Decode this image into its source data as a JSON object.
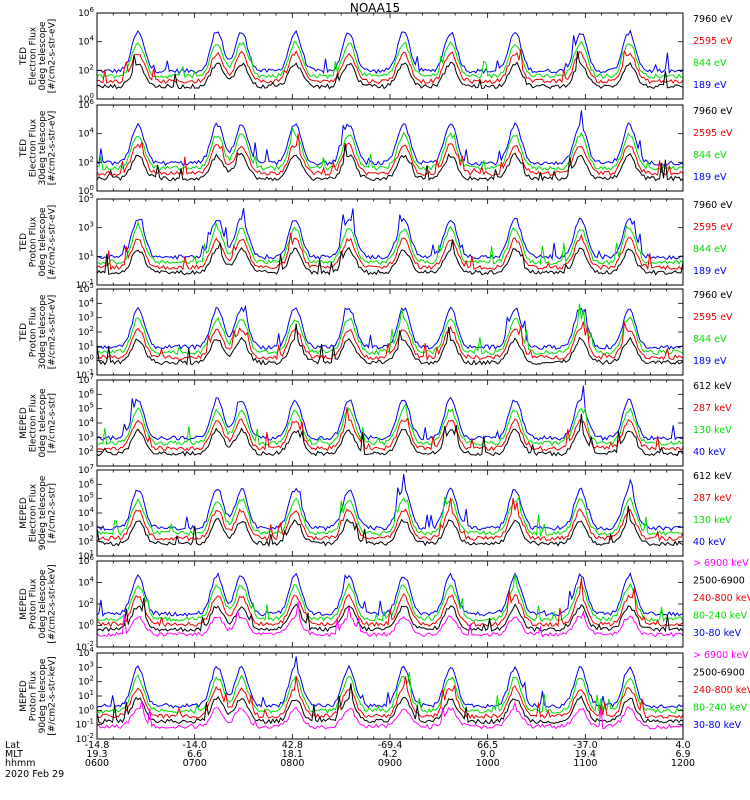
{
  "title": "NOAA15",
  "colors": {
    "black": "#000000",
    "red": "#ee0000",
    "green": "#00dd00",
    "blue": "#0000ee",
    "magenta": "#ff00ff"
  },
  "chart_data": {
    "type": "line",
    "x_label_rows": [
      {
        "name": "Lat",
        "values": [
          "-14.8",
          "-14.0",
          "42.8",
          "-69.4",
          "66.5",
          "-37.0",
          "4.0"
        ]
      },
      {
        "name": "MLT",
        "values": [
          "19.3",
          "6.6",
          "18.1",
          "4.2",
          "9.0",
          "19.4",
          "6.9"
        ]
      },
      {
        "name": "hhmm",
        "values": [
          "0600",
          "0700",
          "0800",
          "0900",
          "1000",
          "1100",
          "1200"
        ]
      }
    ],
    "date": "2020 Feb 29",
    "x_range_hours": [
      6,
      12
    ],
    "panels": [
      {
        "ylabel": [
          "TED",
          "Electron Flux",
          "0deg telescope",
          "[#/cm2-s-str-eV]"
        ],
        "ylim_exp": [
          0,
          6
        ],
        "tick_exps": [
          0,
          2,
          4,
          6
        ],
        "legend": [
          {
            "label": "7960 eV",
            "color": "#000000"
          },
          {
            "label": "2595 eV",
            "color": "#ee0000"
          },
          {
            "label": "844 eV",
            "color": "#00dd00"
          },
          {
            "label": "189 eV",
            "color": "#0000ee"
          }
        ]
      },
      {
        "ylabel": [
          "TED",
          "Electron Flux",
          "30deg telescope",
          "[#/cm2-s-str-eV]"
        ],
        "ylim_exp": [
          0,
          6
        ],
        "tick_exps": [
          0,
          2,
          4,
          6
        ],
        "legend": [
          {
            "label": "7960 eV",
            "color": "#000000"
          },
          {
            "label": "2595 eV",
            "color": "#ee0000"
          },
          {
            "label": "844 eV",
            "color": "#00dd00"
          },
          {
            "label": "189 eV",
            "color": "#0000ee"
          }
        ]
      },
      {
        "ylabel": [
          "TED",
          "Proton Flux",
          "0deg telescope",
          "[#/cm2-s-str-eV]"
        ],
        "ylim_exp": [
          -1,
          5
        ],
        "tick_exps": [
          -1,
          1,
          3,
          5
        ],
        "legend": [
          {
            "label": "7960 eV",
            "color": "#000000"
          },
          {
            "label": "2595 eV",
            "color": "#ee0000"
          },
          {
            "label": "844 eV",
            "color": "#00dd00"
          },
          {
            "label": "189 eV",
            "color": "#0000ee"
          }
        ]
      },
      {
        "ylabel": [
          "TED",
          "Proton Flux",
          "30deg telescope",
          "[#/cm2-s-str-eV]"
        ],
        "ylim_exp": [
          -1,
          5
        ],
        "tick_exps": [
          -1,
          0,
          1,
          2,
          3,
          4,
          5
        ],
        "legend": [
          {
            "label": "7960 eV",
            "color": "#000000"
          },
          {
            "label": "2595 eV",
            "color": "#ee0000"
          },
          {
            "label": "844 eV",
            "color": "#00dd00"
          },
          {
            "label": "189 eV",
            "color": "#0000ee"
          }
        ]
      },
      {
        "ylabel": [
          "MEPED",
          "Electron Flux",
          "0deg telescope",
          "[#/cm2-s-str]"
        ],
        "ylim_exp": [
          1,
          7
        ],
        "tick_exps": [
          2,
          3,
          4,
          5,
          6,
          7
        ],
        "legend": [
          {
            "label": "612 keV",
            "color": "#000000"
          },
          {
            "label": "287 keV",
            "color": "#ee0000"
          },
          {
            "label": "130 keV",
            "color": "#00dd00"
          },
          {
            "label": "40 keV",
            "color": "#0000ee"
          }
        ]
      },
      {
        "ylabel": [
          "MEPED",
          "Electron Flux",
          "90deg telescope",
          "[#/cm2-s-str]"
        ],
        "ylim_exp": [
          1,
          7
        ],
        "tick_exps": [
          1,
          2,
          3,
          4,
          5,
          6,
          7
        ],
        "legend": [
          {
            "label": "612 keV",
            "color": "#000000"
          },
          {
            "label": "287 keV",
            "color": "#ee0000"
          },
          {
            "label": "130 keV",
            "color": "#00dd00"
          },
          {
            "label": "40 keV",
            "color": "#0000ee"
          }
        ]
      },
      {
        "ylabel": [
          "MEPED",
          "Proton Flux",
          "0deg telescope",
          "[#/cm2-s-str-keV]"
        ],
        "ylim_exp": [
          -2,
          6
        ],
        "tick_exps": [
          -2,
          0,
          2,
          4,
          6
        ],
        "legend": [
          {
            "label": "> 6900 keV",
            "color": "#ff00ff"
          },
          {
            "label": "2500-6900",
            "color": "#000000"
          },
          {
            "label": "240-800 keV",
            "color": "#ee0000"
          },
          {
            "label": "80-240 keV",
            "color": "#00dd00"
          },
          {
            "label": "30-80 keV",
            "color": "#0000ee"
          }
        ]
      },
      {
        "ylabel": [
          "MEPED",
          "Proton Flux",
          "90deg telescope",
          "[#/cm2-s-str-keV]"
        ],
        "ylim_exp": [
          -2,
          4
        ],
        "tick_exps": [
          -2,
          -1,
          0,
          1,
          2,
          3,
          4
        ],
        "legend": [
          {
            "label": "> 6900 keV",
            "color": "#ff00ff"
          },
          {
            "label": "2500-6900",
            "color": "#000000"
          },
          {
            "label": "240-800 keV",
            "color": "#ee0000"
          },
          {
            "label": "80-240 keV",
            "color": "#00dd00"
          },
          {
            "label": "30-80 keV",
            "color": "#0000ee"
          }
        ]
      }
    ],
    "series_levels": [
      {
        "color": "#000000",
        "level": 0.08,
        "peak": 0.55
      },
      {
        "color": "#ee0000",
        "level": 0.13,
        "peak": 0.62
      },
      {
        "color": "#00dd00",
        "level": 0.18,
        "peak": 0.68
      },
      {
        "color": "#0000ee",
        "level": 0.25,
        "peak": 0.78
      }
    ],
    "events_hours": [
      6.42,
      7.23,
      7.48,
      8.03,
      8.58,
      9.14,
      9.62,
      10.28,
      10.95,
      11.45
    ]
  }
}
